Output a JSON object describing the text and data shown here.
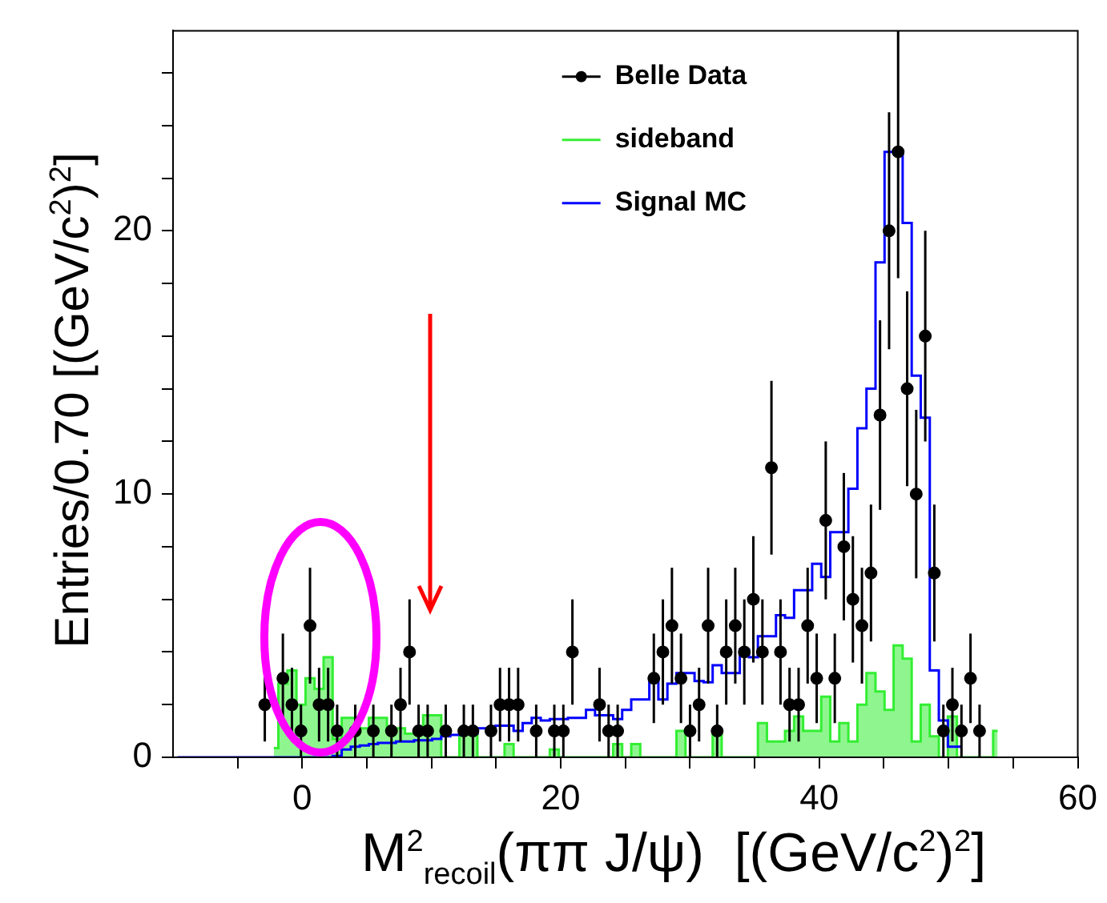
{
  "chart_data": {
    "type": "scatter",
    "xlabel": "M$^{2}$$_{recoil}$(ππ J/ψ)  [(GeV/c$^{2}$)$^{2}$]",
    "ylabel": "Entries/0.70 [(GeV/c$^{2}$)$^{2}$]",
    "xlim": [
      -10,
      60
    ],
    "xticks": [
      {
        "value": -5,
        "label": null
      },
      0,
      {
        "value": 5,
        "label": null
      },
      {
        "value": 10,
        "label": null
      },
      {
        "value": 15,
        "label": null
      },
      20,
      {
        "value": 25,
        "label": null
      },
      {
        "value": 30,
        "label": null
      },
      {
        "value": 35,
        "label": null
      },
      40,
      {
        "value": 45,
        "label": null
      },
      {
        "value": 50,
        "label": null
      },
      {
        "value": 55,
        "label": null
      },
      60
    ],
    "ylim": [
      0,
      27.6
    ],
    "yticks": [
      0,
      {
        "value": 2,
        "label": null
      },
      {
        "value": 4,
        "label": null
      },
      {
        "value": 6,
        "label": null
      },
      {
        "value": 8,
        "label": null
      },
      10,
      {
        "value": 12,
        "label": null
      },
      {
        "value": 14,
        "label": null
      },
      {
        "value": 16,
        "label": null
      },
      {
        "value": 18,
        "label": null
      },
      20,
      {
        "value": 22,
        "label": null
      },
      {
        "value": 24,
        "label": null
      },
      {
        "value": 26,
        "label": null
      }
    ],
    "legend": "top",
    "series": [
      {
        "name": "Belle Data",
        "type": "scatter",
        "marker": "circle",
        "color": "#000000",
        "x": [
          -2.9,
          -1.5,
          -0.8,
          -0.1,
          0.6,
          1.3,
          2.0,
          2.7,
          4.1,
          5.5,
          6.9,
          7.6,
          8.3,
          9.0,
          9.7,
          11.1,
          12.5,
          13.2,
          14.6,
          15.3,
          16.0,
          16.7,
          18.1,
          19.5,
          20.2,
          20.9,
          23.0,
          23.7,
          24.4,
          27.2,
          27.9,
          28.6,
          29.3,
          30.0,
          30.7,
          31.4,
          32.1,
          32.8,
          33.5,
          34.2,
          34.9,
          35.6,
          36.3,
          37.0,
          37.7,
          38.4,
          39.1,
          39.8,
          40.5,
          41.2,
          41.9,
          42.6,
          43.3,
          44.0,
          44.7,
          45.4,
          46.1,
          46.8,
          47.5,
          48.2,
          48.9,
          49.6,
          50.3,
          51.0,
          51.7,
          52.4
        ],
        "values": [
          2,
          3,
          2,
          1,
          5,
          2,
          2,
          1,
          1,
          1,
          1,
          2,
          4,
          1,
          1,
          1,
          1,
          1,
          1,
          2,
          2,
          2,
          1,
          1,
          1,
          4,
          2,
          1,
          1,
          3,
          4,
          5,
          3,
          1,
          2,
          5,
          1,
          4,
          5,
          4,
          6,
          4,
          11,
          4,
          2,
          2,
          5,
          3,
          9,
          3,
          8,
          6,
          5,
          7,
          13,
          20,
          23,
          14,
          10,
          16,
          7,
          1,
          2,
          1,
          3,
          1
        ],
        "errors": [
          1.4,
          1.7,
          1.4,
          1,
          2.2,
          1.4,
          1.4,
          1,
          1,
          1,
          1,
          1.4,
          2,
          1,
          1,
          1,
          1,
          1,
          1,
          1.4,
          1.4,
          1.4,
          1,
          1,
          1,
          2,
          1.4,
          1,
          1,
          1.7,
          2,
          2.2,
          1.7,
          1,
          1.4,
          2.2,
          1,
          2,
          2.2,
          2,
          2.4,
          2,
          3.3,
          2,
          1.4,
          1.4,
          2.2,
          1.7,
          3,
          1.7,
          2.8,
          2.4,
          2.2,
          2.6,
          3.6,
          4.5,
          [
            18.2,
            27.6
          ],
          3.7,
          3.2,
          4,
          2.6,
          1,
          1.4,
          1,
          1.7,
          1
        ]
      },
      {
        "name": "sideband",
        "type": "area",
        "marker": "none",
        "color": "#33ee33",
        "x": [
          -2.2,
          -1.5,
          -0.8,
          -0.1,
          0.6,
          1.3,
          2.0,
          2.7,
          3.4,
          4.1,
          4.8,
          5.5,
          6.2,
          6.9,
          7.6,
          8.3,
          9.0,
          9.7,
          10.4,
          11.1,
          11.8,
          12.5,
          13.2,
          13.9,
          14.6,
          15.3,
          16.0,
          16.7,
          17.4,
          18.1,
          18.8,
          19.5,
          20.2,
          20.9,
          21.6,
          22.3,
          23.0,
          23.7,
          24.4,
          25.1,
          25.8,
          26.5,
          27.2,
          27.9,
          28.6,
          29.3,
          30.0,
          30.7,
          31.4,
          32.1,
          32.8,
          33.5,
          34.2,
          34.9,
          35.6,
          36.3,
          37.0,
          37.7,
          38.4,
          39.1,
          39.8,
          40.5,
          41.2,
          41.9,
          42.6,
          43.3,
          44.0,
          44.7,
          45.4,
          46.1,
          46.8,
          47.5,
          48.2,
          48.9,
          49.6,
          50.3,
          51.0,
          51.7,
          52.4,
          53.1,
          53.8
        ],
        "values": [
          0.35,
          2.8,
          3.3,
          2.0,
          3.0,
          2.6,
          3.8,
          0.7,
          1.5,
          1.5,
          1.1,
          1.5,
          1.5,
          1.1,
          1.1,
          0.9,
          0.9,
          1.6,
          1.6,
          0,
          0,
          1.0,
          1.0,
          0,
          0,
          0,
          0.5,
          0,
          0,
          0,
          0,
          0.3,
          0,
          0,
          0,
          0,
          0,
          0,
          0.5,
          0,
          0.5,
          0,
          0,
          0,
          0,
          1.0,
          0,
          0,
          0,
          1.0,
          0,
          0,
          0,
          0,
          1.3,
          0.6,
          0.6,
          1.0,
          1.55,
          1.0,
          1.0,
          2.3,
          0.6,
          1.3,
          0.6,
          2.0,
          3.2,
          2.5,
          1.8,
          4.25,
          3.75,
          0.6,
          2.0,
          0.8,
          0,
          1.55,
          0,
          0,
          0,
          0,
          1.0
        ]
      },
      {
        "name": "Signal MC",
        "type": "step",
        "marker": "none",
        "color": "#0000ff",
        "x": [
          -9.65,
          2.0,
          2.7,
          3.4,
          4.1,
          4.8,
          5.5,
          6.2,
          6.9,
          7.6,
          8.3,
          9.0,
          9.7,
          10.4,
          11.1,
          11.8,
          12.5,
          13.2,
          13.9,
          14.6,
          15.3,
          16.0,
          16.7,
          17.4,
          18.1,
          18.8,
          19.5,
          20.2,
          20.9,
          21.6,
          22.3,
          23.0,
          23.7,
          24.4,
          25.1,
          25.8,
          26.5,
          27.2,
          27.9,
          28.6,
          29.3,
          30.0,
          30.7,
          31.4,
          32.1,
          32.8,
          33.5,
          34.2,
          34.9,
          35.6,
          36.3,
          37.0,
          37.7,
          38.4,
          39.1,
          39.8,
          40.5,
          41.2,
          41.9,
          42.6,
          43.3,
          44.0,
          44.7,
          45.4,
          46.1,
          46.8,
          47.5,
          48.2,
          48.9,
          49.6,
          50.3,
          51.0
        ],
        "values": [
          0,
          0,
          0.05,
          0.3,
          0.4,
          0.45,
          0.5,
          0.55,
          0.55,
          0.6,
          0.6,
          0.65,
          0.65,
          0.7,
          0.8,
          0.85,
          0.9,
          0.9,
          1.1,
          1.1,
          1.2,
          1.2,
          1.0,
          1.3,
          1.5,
          1.4,
          1.45,
          1.45,
          1.5,
          1.5,
          1.8,
          1.6,
          1.6,
          1.45,
          1.8,
          2.2,
          2.2,
          2.9,
          2.2,
          2.8,
          3.2,
          3.2,
          2.9,
          2.85,
          3.5,
          3.2,
          3.2,
          4.1,
          3.8,
          4.6,
          4.6,
          5.4,
          5.3,
          6.35,
          6.35,
          7.35,
          6.85,
          8.55,
          8.55,
          10.2,
          12.5,
          14.0,
          18.8,
          23.0,
          23.0,
          20.3,
          14.5,
          12.9,
          3.3,
          1.4,
          0.4,
          0.4
        ]
      }
    ]
  }
}
